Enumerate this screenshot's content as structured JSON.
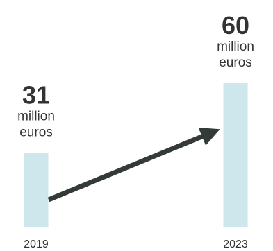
{
  "chart_data": {
    "type": "bar",
    "categories": [
      "2019",
      "2023"
    ],
    "values": [
      31,
      60
    ],
    "value_unit_lines": [
      "million",
      "euros"
    ],
    "bar_color": "#cde7ec",
    "arrow_color": "#333a37",
    "text_color": "#333333",
    "grid": false,
    "legend": "none",
    "ylim": [
      0,
      60
    ],
    "annotations": [
      "arrow from 2019 bar to 2023 bar"
    ]
  }
}
